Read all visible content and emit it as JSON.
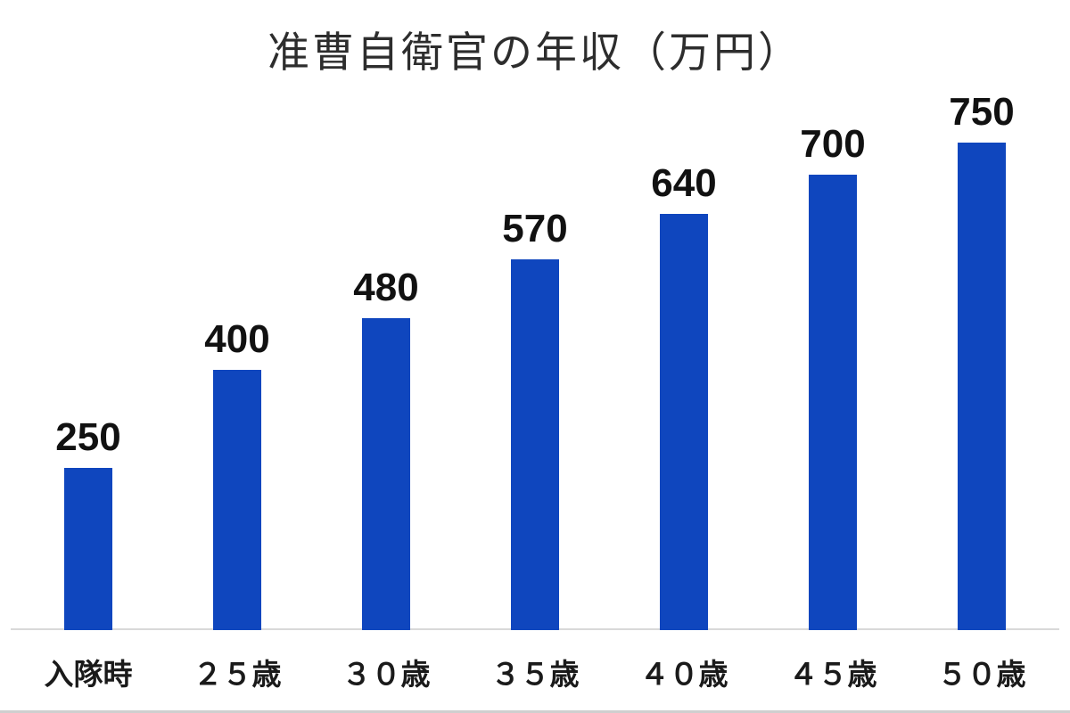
{
  "title": "准曹自衛官の年収（万円）",
  "colors": {
    "bar": "#0F46BE",
    "axis_line": "#D9D9D9",
    "title_text": "#2D2D2D",
    "value_label_text": "#111111",
    "category_label_text": "#1A1A1A",
    "background": "#FFFFFF"
  },
  "chart_data": {
    "type": "bar",
    "title": "准曹自衛官の年収（万円）",
    "categories": [
      "入隊時",
      "２５歳",
      "３０歳",
      "３５歳",
      "４０歳",
      "４５歳",
      "５０歳"
    ],
    "values": [
      250,
      400,
      480,
      570,
      640,
      700,
      750
    ],
    "series_name": "年収（万円）",
    "data_labels": [
      250,
      400,
      480,
      570,
      640,
      700,
      750
    ],
    "xlabel": "",
    "ylabel": "",
    "ylim": [
      0,
      820
    ],
    "grid": false,
    "legend": false,
    "bar_color": "#0F46BE"
  }
}
